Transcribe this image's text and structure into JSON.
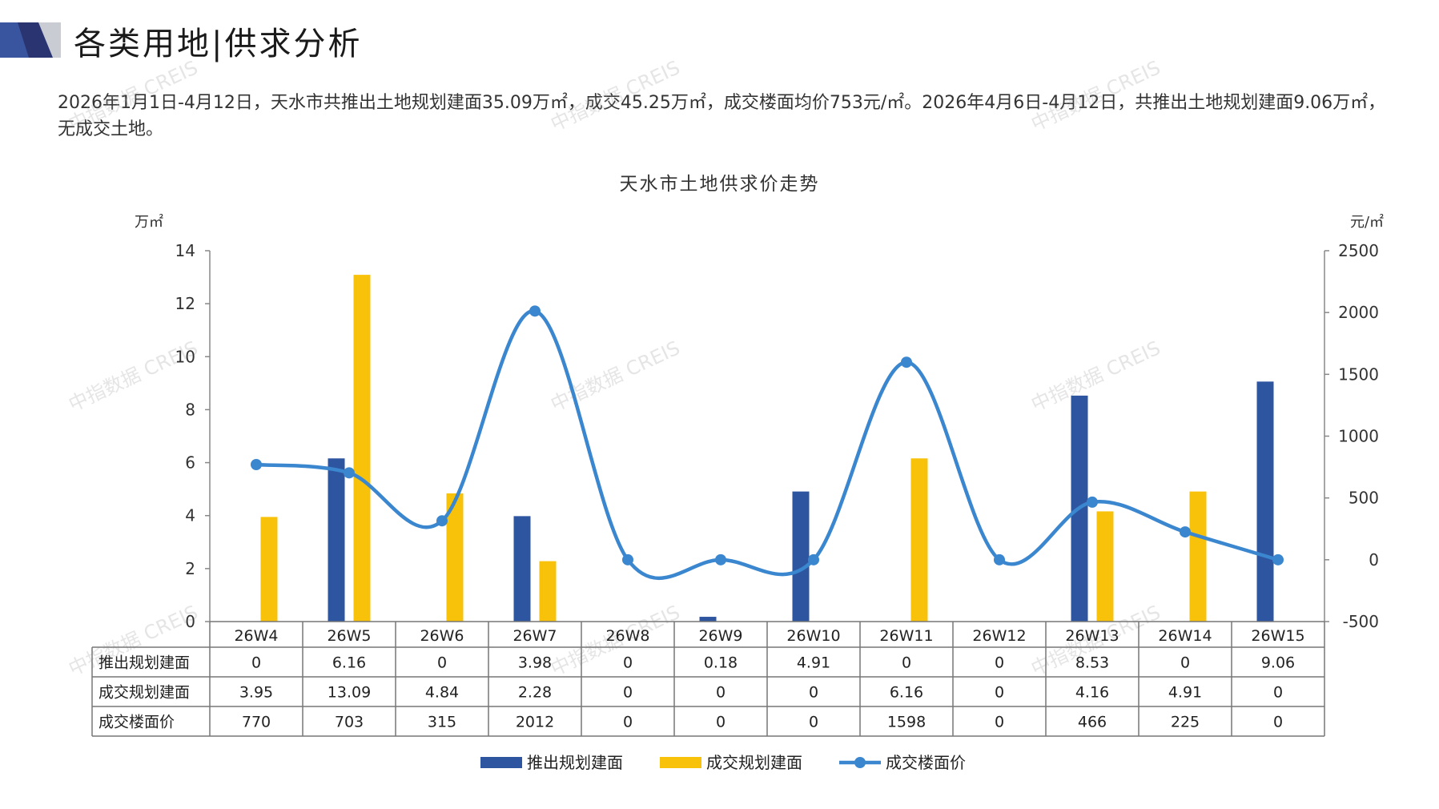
{
  "page": {
    "title": "各类用地|供求分析",
    "summary": "2026年1月1日-4月12日，天水市共推出土地规划建面35.09万㎡，成交45.25万㎡，成交楼面均价753元/㎡。2026年4月6日-4月12日，共推出土地规划建面9.06万㎡，无成交土地。",
    "watermark": "中指数据 CREIS"
  },
  "chart_data": {
    "type": "bar+line",
    "title": "天水市土地供求价走势",
    "left_unit": "万㎡",
    "right_unit": "元/㎡",
    "categories": [
      "26W4",
      "26W5",
      "26W6",
      "26W7",
      "26W8",
      "26W9",
      "26W10",
      "26W11",
      "26W12",
      "26W13",
      "26W14",
      "26W15"
    ],
    "ylim_left": [
      0,
      14
    ],
    "yticks_left": [
      0,
      2,
      4,
      6,
      8,
      10,
      12,
      14
    ],
    "ylim_right": [
      -500,
      2500
    ],
    "yticks_right": [
      -500,
      0,
      500,
      1000,
      1500,
      2000,
      2500
    ],
    "series": [
      {
        "name": "推出规划建面",
        "type": "bar",
        "axis": "left",
        "color": "#2e55a0",
        "values": [
          0,
          6.16,
          0,
          3.98,
          0,
          0.18,
          4.91,
          0,
          0,
          8.53,
          0,
          9.06
        ],
        "labels": [
          "0",
          "6.16",
          "0",
          "3.98",
          "0",
          "0.18",
          "4.91",
          "0",
          "0",
          "8.53",
          "0",
          "9.06"
        ]
      },
      {
        "name": "成交规划建面",
        "type": "bar",
        "axis": "left",
        "color": "#f9c20a",
        "values": [
          3.95,
          13.09,
          4.84,
          2.28,
          0,
          0,
          0,
          6.16,
          0,
          4.16,
          4.91,
          0
        ],
        "labels": [
          "3.95",
          "13.09",
          "4.84",
          "2.28",
          "0",
          "0",
          "0",
          "6.16",
          "0",
          "4.16",
          "4.91",
          "0"
        ]
      },
      {
        "name": "成交楼面价",
        "type": "line",
        "axis": "right",
        "color": "#3a86cf",
        "values": [
          770,
          703,
          315,
          2012,
          0,
          0,
          0,
          1598,
          0,
          466,
          225,
          0
        ],
        "labels": [
          "770",
          "703",
          "315",
          "2012",
          "0",
          "0",
          "0",
          "1598",
          "0",
          "466",
          "225",
          "0"
        ]
      }
    ],
    "grid": false,
    "legend": "bottom-center",
    "data_table": true
  }
}
